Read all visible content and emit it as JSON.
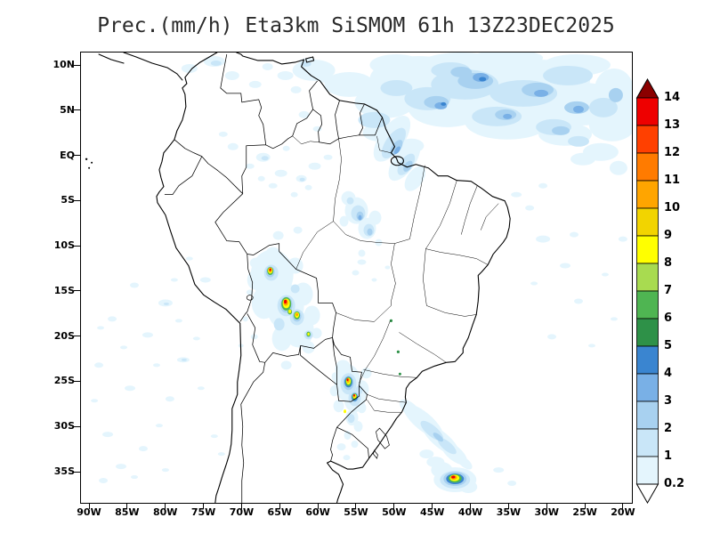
{
  "title": "Prec.(mm/h) Eta3km SiSMOM 61h 13Z23DEC2025",
  "meta": {
    "variable": "Prec.(mm/h)",
    "model": "Eta3km",
    "system": "SiSMOM",
    "forecast_hour": "61h",
    "valid_time": "13Z23DEC2025"
  },
  "axes": {
    "lat_labels": [
      "10N",
      "5N",
      "EQ",
      "5S",
      "10S",
      "15S",
      "20S",
      "25S",
      "30S",
      "35S"
    ],
    "lon_labels": [
      "90W",
      "85W",
      "80W",
      "75W",
      "70W",
      "65W",
      "60W",
      "55W",
      "50W",
      "45W",
      "40W",
      "35W",
      "30W",
      "25W",
      "20W"
    ]
  },
  "colorbar": {
    "unit": "mm/h",
    "labels_top_to_bottom": [
      "14",
      "13",
      "12",
      "11",
      "10",
      "9",
      "8",
      "7",
      "6",
      "5",
      "4",
      "3",
      "2",
      "1",
      "0.2"
    ],
    "thresholds_low_to_high": [
      0.2,
      1,
      2,
      3,
      4,
      5,
      6,
      7,
      8,
      9,
      10,
      11,
      12,
      13,
      14
    ],
    "colors_low_to_high": [
      "#e4f5fd",
      "#c9e6f8",
      "#a8d1f0",
      "#79b0e6",
      "#3a85d0",
      "#2e9148",
      "#4fb552",
      "#a8db50",
      "#ffff00",
      "#f2d400",
      "#ffa500",
      "#ff7b00",
      "#ff4000",
      "#ee0000"
    ],
    "above_max_color": "#8b0000",
    "below_min_color": "#ffffff"
  },
  "colors": {
    "line": "#000000",
    "background": "#ffffff",
    "text": "#2a2a2a"
  },
  "features": [
    "widespread light rain over tropical North Atlantic and Guianas",
    "rain band across Amapa and Amazon mouth",
    "intense convective cells over Bolivia lowlands",
    "convective cluster over Paraguay / far southern Brazil",
    "light rain streak off southeast Brazil coast",
    "intense storm over South Atlantic near 36S 42W",
    "scattered drizzle cells over southeast Pacific"
  ]
}
